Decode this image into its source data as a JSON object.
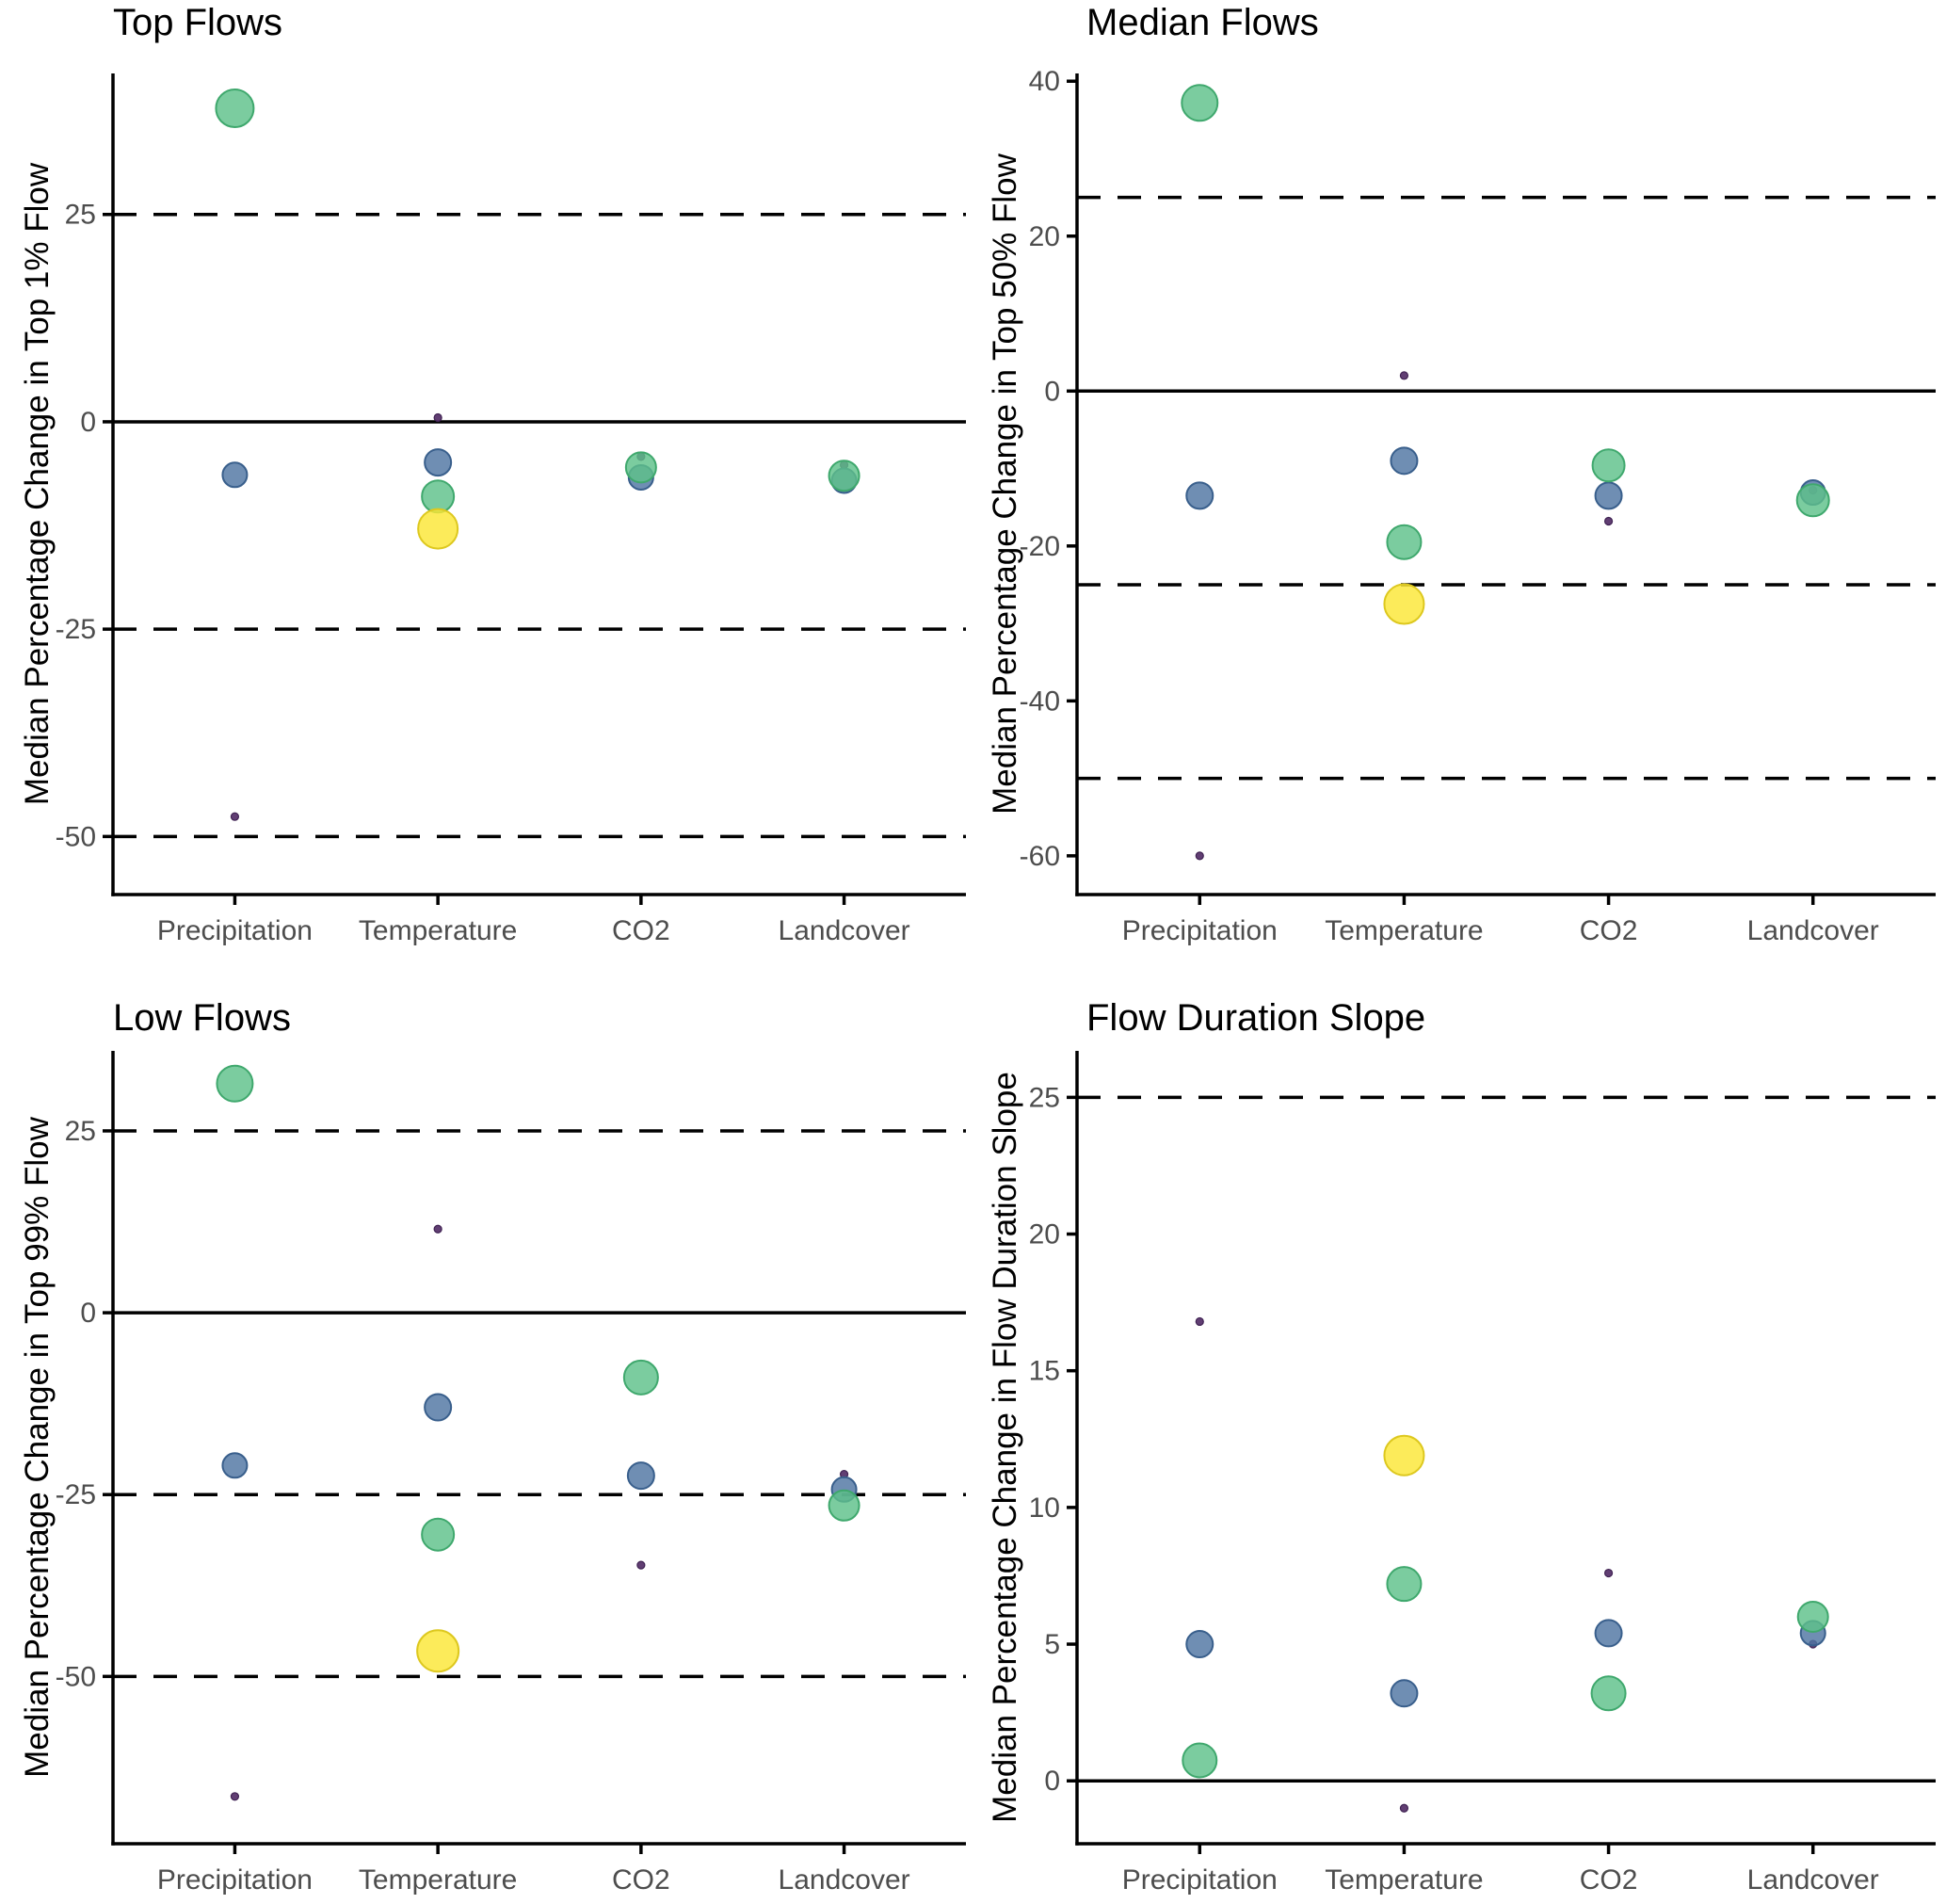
{
  "figure": {
    "background": "#ffffff",
    "axis_text_color": "#4d4d4d",
    "axis_line_color": "#000000"
  },
  "palette": {
    "purple": {
      "fill": "#58346b",
      "stroke": "#3f2252"
    },
    "blue": {
      "fill": "#4f75a2",
      "stroke": "#395f8c"
    },
    "green": {
      "fill": "#5ec18a",
      "stroke": "#3fa86d"
    },
    "yellow": {
      "fill": "#fbe636",
      "stroke": "#ddc81f"
    }
  },
  "chart_data": [
    {
      "type": "scatter",
      "title": "Top Flows",
      "ylabel": "Median Percentage Change in Top 1% Flow",
      "xlabel": "",
      "categories": [
        "Precipitation",
        "Temperature",
        "CO2",
        "Landcover"
      ],
      "yticks": [
        25,
        0,
        -25,
        -50
      ],
      "ylim": [
        -57,
        42
      ],
      "solid_hline": 0,
      "dashed_hlines": [
        25,
        -25,
        -50
      ],
      "grid": false,
      "legend": "none",
      "points": [
        {
          "category": "Precipitation",
          "value": -47.6,
          "color": "purple",
          "r": 4
        },
        {
          "category": "Temperature",
          "value": 0.5,
          "color": "purple",
          "r": 4
        },
        {
          "category": "CO2",
          "value": -4.2,
          "color": "purple",
          "r": 4
        },
        {
          "category": "Landcover",
          "value": -5.2,
          "color": "purple",
          "r": 4
        },
        {
          "category": "Precipitation",
          "value": -6.4,
          "color": "blue",
          "r": 13
        },
        {
          "category": "Temperature",
          "value": -4.9,
          "color": "blue",
          "r": 14
        },
        {
          "category": "CO2",
          "value": -6.7,
          "color": "blue",
          "r": 13
        },
        {
          "category": "Landcover",
          "value": -7.1,
          "color": "blue",
          "r": 13
        },
        {
          "category": "Precipitation",
          "value": 37.8,
          "color": "green",
          "r": 20
        },
        {
          "category": "Temperature",
          "value": -9.0,
          "color": "green",
          "r": 17
        },
        {
          "category": "CO2",
          "value": -5.5,
          "color": "green",
          "r": 16
        },
        {
          "category": "Landcover",
          "value": -6.5,
          "color": "green",
          "r": 16
        },
        {
          "category": "Temperature",
          "value": -12.9,
          "color": "yellow",
          "r": 21
        }
      ]
    },
    {
      "type": "scatter",
      "title": "Median Flows",
      "ylabel": "Median Percentage Change in Top 50% Flow",
      "xlabel": "",
      "categories": [
        "Precipitation",
        "Temperature",
        "CO2",
        "Landcover"
      ],
      "yticks": [
        40,
        20,
        0,
        -20,
        -40,
        -60
      ],
      "ylim": [
        -65,
        41
      ],
      "solid_hline": 0,
      "dashed_hlines": [
        25,
        -25,
        -50
      ],
      "grid": false,
      "legend": "none",
      "points": [
        {
          "category": "Precipitation",
          "value": -60.0,
          "color": "purple",
          "r": 4
        },
        {
          "category": "Temperature",
          "value": 2.0,
          "color": "purple",
          "r": 4
        },
        {
          "category": "CO2",
          "value": -16.8,
          "color": "purple",
          "r": 4
        },
        {
          "category": "Landcover",
          "value": -12.8,
          "color": "purple",
          "r": 4
        },
        {
          "category": "Precipitation",
          "value": -13.5,
          "color": "blue",
          "r": 14
        },
        {
          "category": "Temperature",
          "value": -9.0,
          "color": "blue",
          "r": 14
        },
        {
          "category": "CO2",
          "value": -13.5,
          "color": "blue",
          "r": 14
        },
        {
          "category": "Landcover",
          "value": -13.1,
          "color": "blue",
          "r": 13
        },
        {
          "category": "Precipitation",
          "value": 37.2,
          "color": "green",
          "r": 19
        },
        {
          "category": "Temperature",
          "value": -19.5,
          "color": "green",
          "r": 18
        },
        {
          "category": "CO2",
          "value": -9.6,
          "color": "green",
          "r": 17
        },
        {
          "category": "Landcover",
          "value": -14.1,
          "color": "green",
          "r": 17
        },
        {
          "category": "Temperature",
          "value": -27.5,
          "color": "yellow",
          "r": 21
        }
      ]
    },
    {
      "type": "scatter",
      "title": "Low Flows",
      "ylabel": "Median Percentage Change in Top 99% Flow",
      "xlabel": "",
      "categories": [
        "Precipitation",
        "Temperature",
        "CO2",
        "Landcover"
      ],
      "yticks": [
        25,
        0,
        -25,
        -50
      ],
      "ylim": [
        -73,
        36
      ],
      "solid_hline": 0,
      "dashed_hlines": [
        25,
        -25,
        -50
      ],
      "grid": false,
      "legend": "none",
      "points": [
        {
          "category": "Precipitation",
          "value": -66.5,
          "color": "purple",
          "r": 4
        },
        {
          "category": "Temperature",
          "value": 11.5,
          "color": "purple",
          "r": 4
        },
        {
          "category": "CO2",
          "value": -34.7,
          "color": "purple",
          "r": 4
        },
        {
          "category": "Landcover",
          "value": -22.2,
          "color": "purple",
          "r": 4
        },
        {
          "category": "Precipitation",
          "value": -21.0,
          "color": "blue",
          "r": 13
        },
        {
          "category": "Temperature",
          "value": -13.0,
          "color": "blue",
          "r": 14
        },
        {
          "category": "CO2",
          "value": -22.4,
          "color": "blue",
          "r": 14
        },
        {
          "category": "Landcover",
          "value": -24.3,
          "color": "blue",
          "r": 13
        },
        {
          "category": "Precipitation",
          "value": 31.5,
          "color": "green",
          "r": 19
        },
        {
          "category": "Temperature",
          "value": -30.5,
          "color": "green",
          "r": 17
        },
        {
          "category": "CO2",
          "value": -8.9,
          "color": "green",
          "r": 18
        },
        {
          "category": "Landcover",
          "value": -26.5,
          "color": "green",
          "r": 16
        },
        {
          "category": "Temperature",
          "value": -46.5,
          "color": "yellow",
          "r": 22
        }
      ]
    },
    {
      "type": "scatter",
      "title": "Flow Duration Slope",
      "ylabel": "Median Percentage Change in Flow Duration Slope",
      "xlabel": "",
      "categories": [
        "Precipitation",
        "Temperature",
        "CO2",
        "Landcover"
      ],
      "yticks": [
        25,
        20,
        15,
        10,
        5,
        0
      ],
      "ylim": [
        -2.3,
        26.7
      ],
      "solid_hline": 0,
      "dashed_hlines": [
        25
      ],
      "grid": false,
      "legend": "none",
      "points": [
        {
          "category": "Precipitation",
          "value": 16.8,
          "color": "purple",
          "r": 4
        },
        {
          "category": "Temperature",
          "value": -1.0,
          "color": "purple",
          "r": 4
        },
        {
          "category": "CO2",
          "value": 7.6,
          "color": "purple",
          "r": 4
        },
        {
          "category": "Landcover",
          "value": 5.0,
          "color": "purple",
          "r": 4
        },
        {
          "category": "Precipitation",
          "value": 5.0,
          "color": "blue",
          "r": 14
        },
        {
          "category": "Temperature",
          "value": 3.2,
          "color": "blue",
          "r": 14
        },
        {
          "category": "CO2",
          "value": 5.4,
          "color": "blue",
          "r": 14
        },
        {
          "category": "Landcover",
          "value": 5.4,
          "color": "blue",
          "r": 13
        },
        {
          "category": "Precipitation",
          "value": 0.75,
          "color": "green",
          "r": 18
        },
        {
          "category": "Temperature",
          "value": 7.2,
          "color": "green",
          "r": 18
        },
        {
          "category": "CO2",
          "value": 3.2,
          "color": "green",
          "r": 18
        },
        {
          "category": "Landcover",
          "value": 6.0,
          "color": "green",
          "r": 16
        },
        {
          "category": "Temperature",
          "value": 11.9,
          "color": "yellow",
          "r": 21
        }
      ]
    }
  ]
}
